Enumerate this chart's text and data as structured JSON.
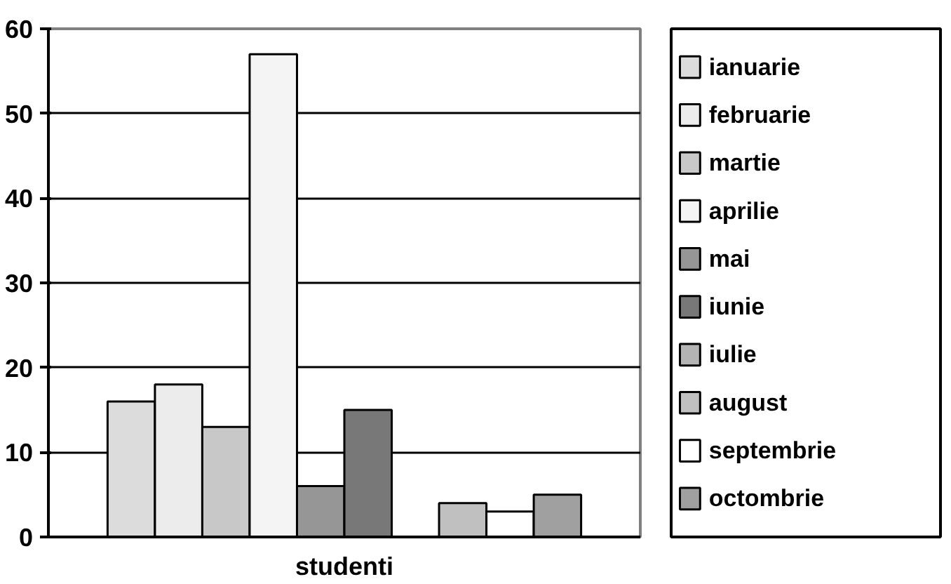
{
  "chart_data": {
    "type": "bar",
    "categories": [
      "studenti"
    ],
    "series": [
      {
        "name": "ianuarie",
        "color": "#dcdcdc",
        "values": [
          16
        ]
      },
      {
        "name": "februarie",
        "color": "#ececec",
        "values": [
          18
        ]
      },
      {
        "name": "martie",
        "color": "#c8c8c8",
        "values": [
          13
        ]
      },
      {
        "name": "aprilie",
        "color": "#f4f4f4",
        "values": [
          57
        ]
      },
      {
        "name": "mai",
        "color": "#969696",
        "values": [
          6
        ]
      },
      {
        "name": "iunie",
        "color": "#787878",
        "values": [
          15
        ]
      },
      {
        "name": "iulie",
        "color": "#b4b4b4",
        "values": [
          0
        ]
      },
      {
        "name": "august",
        "color": "#c0c0c0",
        "values": [
          4
        ]
      },
      {
        "name": "septembrie",
        "color": "#ffffff",
        "values": [
          3
        ]
      },
      {
        "name": "octombrie",
        "color": "#a0a0a0",
        "values": [
          5
        ]
      }
    ],
    "ylim": [
      0,
      60
    ],
    "yticks": [
      0,
      10,
      20,
      30,
      40,
      50,
      60
    ],
    "grid": "y",
    "legend": "right"
  }
}
